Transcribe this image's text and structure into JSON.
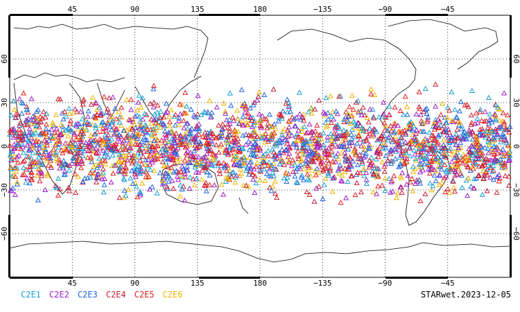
{
  "map": {
    "top_lon_labels": [
      "45",
      "90",
      "135",
      "180",
      "−135",
      "−90",
      "−45"
    ],
    "bottom_lon_labels": [
      "45",
      "90",
      "135",
      "180",
      "−135",
      "−90",
      "−45"
    ],
    "lat_labels": [
      "60",
      "30",
      "0",
      "−30",
      "−60"
    ],
    "lon_values": [
      45,
      90,
      135,
      180,
      -135,
      -90,
      -45
    ],
    "lat_values": [
      60,
      30,
      0,
      -30,
      -60
    ],
    "lon_range": [
      0,
      360
    ],
    "lat_range": [
      -90,
      90
    ],
    "grid": true
  },
  "legend": [
    {
      "label": "C2E1",
      "color": "#19a0d2"
    },
    {
      "label": "C2E2",
      "color": "#a020c8"
    },
    {
      "label": "C2E3",
      "color": "#1e64dc"
    },
    {
      "label": "C2E4",
      "color": "#c81e32"
    },
    {
      "label": "C2E5",
      "color": "#e61e1e"
    },
    {
      "label": "C2E6",
      "color": "#f0b400"
    }
  ],
  "footer": {
    "stamp": "STARwet.2023-12-05"
  },
  "observations": {
    "lat_band": [
      -45,
      45
    ],
    "marker": "triangle-open-icon"
  }
}
